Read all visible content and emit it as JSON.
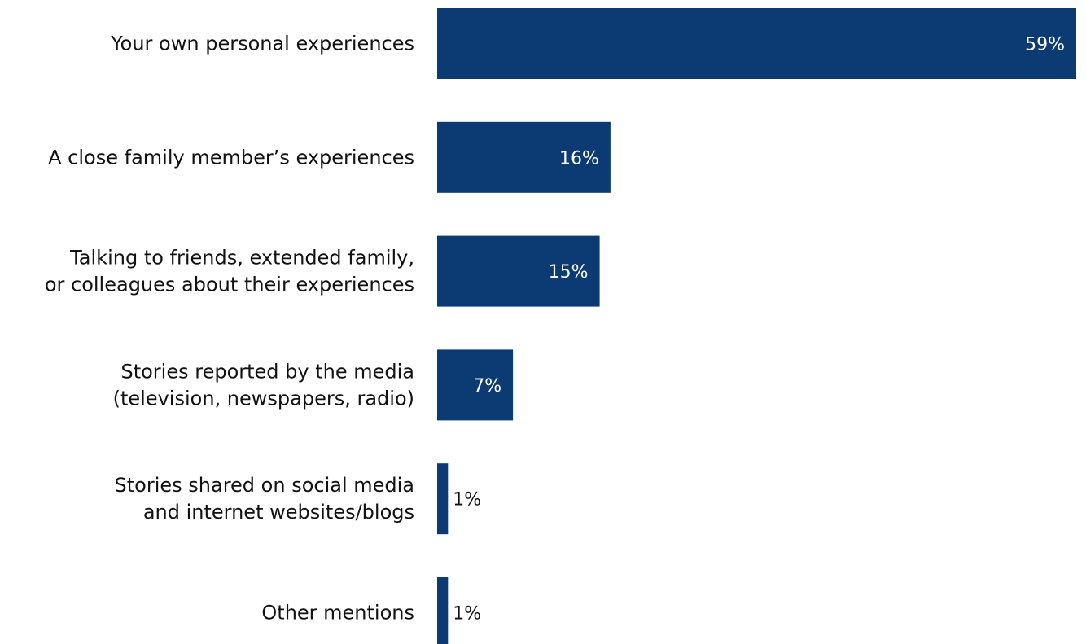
{
  "colors": {
    "bar": "#0b3b72",
    "label_inside": "#ffffff",
    "label_outside": "#111111",
    "category_text": "#111111",
    "background": "#ffffff"
  },
  "chart_data": {
    "type": "bar",
    "orientation": "horizontal",
    "categories": [
      "Your own personal experiences",
      "A close family member’s experiences",
      "Talking to friends, extended family, or colleagues about their experiences",
      "Stories reported by the media (television, newspapers, radio)",
      "Stories shared on social media and internet websites/blogs",
      "Other mentions"
    ],
    "category_lines": [
      [
        "Your own personal experiences"
      ],
      [
        "A close family member’s experiences"
      ],
      [
        "Talking to friends, extended family,",
        "or colleagues about their experiences"
      ],
      [
        "Stories reported by the media",
        "(television, newspapers, radio)"
      ],
      [
        "Stories shared on social media",
        "and internet websites/blogs"
      ],
      [
        "Other mentions"
      ]
    ],
    "values": [
      59,
      16,
      15,
      7,
      1,
      1
    ],
    "value_labels": [
      "59%",
      "16%",
      "15%",
      "7%",
      "1%",
      "1%"
    ],
    "unit": "%",
    "xlim": [
      0,
      59
    ],
    "grid": false,
    "legend": "none",
    "title": "",
    "xlabel": "",
    "ylabel": ""
  }
}
